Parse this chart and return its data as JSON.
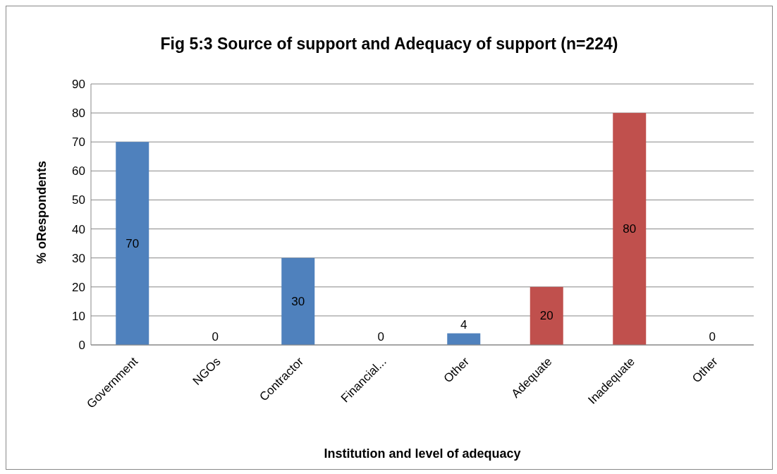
{
  "chart_data": {
    "type": "bar",
    "title": "Fig 5:3  Source of support and Adequacy of support (n=224)",
    "xlabel": "Institution and level of adequacy",
    "ylabel": "% oRespondents",
    "categories": [
      "Government",
      "NGOs",
      "Contractor",
      "Financial...",
      "Other",
      "Adequate",
      "Inadequate",
      "Other"
    ],
    "values": [
      70,
      0,
      30,
      0,
      4,
      20,
      80,
      0
    ],
    "colors": [
      "#4f81bd",
      "#4f81bd",
      "#4f81bd",
      "#4f81bd",
      "#4f81bd",
      "#c0504d",
      "#c0504d",
      "#c0504d"
    ],
    "ylim": [
      0,
      90
    ],
    "yticks": [
      0,
      10,
      20,
      30,
      40,
      50,
      60,
      70,
      80,
      90
    ],
    "grid": "y",
    "data_labels": true,
    "legend": false
  }
}
